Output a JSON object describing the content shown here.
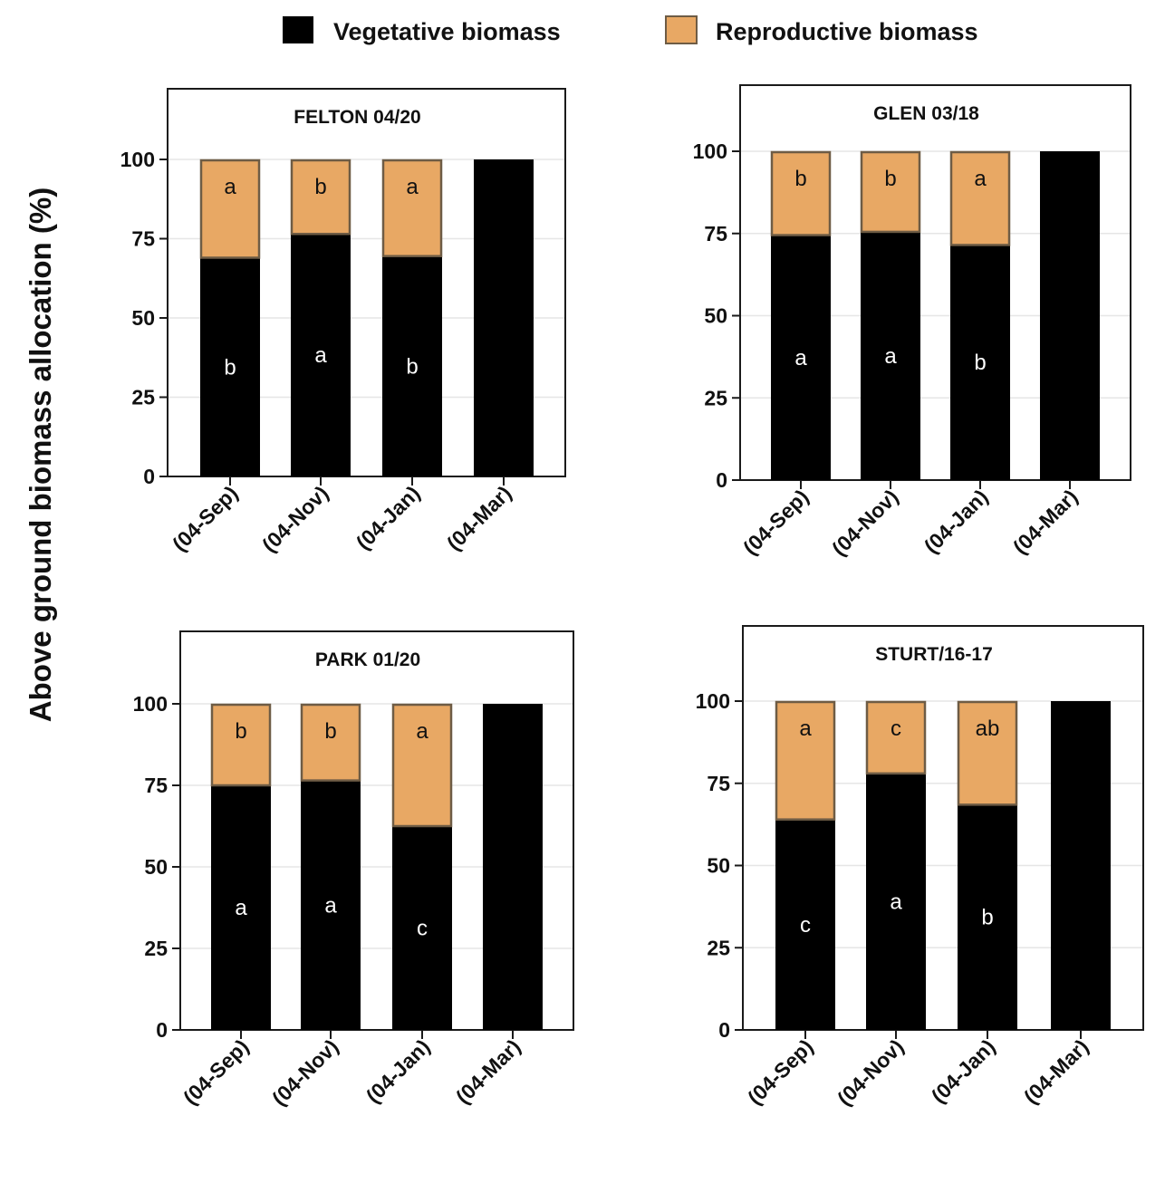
{
  "chart_data": {
    "type": "bar",
    "stacked": true,
    "ylabel": "Above ground biomass allocation (%)",
    "legend": {
      "position": "top-center",
      "entries": [
        {
          "name": "Vegetative biomass",
          "color": "#000000"
        },
        {
          "name": "Reproductive biomass",
          "color": "#E8A864"
        }
      ]
    },
    "ylim": [
      0,
      120
    ],
    "yticks": [
      0,
      25,
      50,
      75,
      100
    ],
    "categories": [
      "(04-Sep)",
      "(04-Nov)",
      "(04-Jan)",
      "(04-Mar)"
    ],
    "colors": {
      "vegetative": "#000000",
      "reproductive": "#E8A864",
      "reproductive_edge": "#6E5C45",
      "gridline": "#E6E6E6"
    },
    "panels": [
      {
        "title": "FELTON 04/20",
        "vegetative": [
          69,
          76.5,
          69.5,
          100
        ],
        "reproductive": [
          31,
          23.5,
          30.5,
          0
        ],
        "vegetative_letters": [
          "b",
          "a",
          "b",
          ""
        ],
        "reproductive_letters": [
          "a",
          "b",
          "a",
          ""
        ]
      },
      {
        "title": "GLEN 03/18",
        "vegetative": [
          74.5,
          75.5,
          71.5,
          100
        ],
        "reproductive": [
          25.5,
          24.5,
          28.5,
          0
        ],
        "vegetative_letters": [
          "a",
          "a",
          "b",
          ""
        ],
        "reproductive_letters": [
          "b",
          "b",
          "a",
          ""
        ]
      },
      {
        "title": "PARK 01/20",
        "vegetative": [
          75,
          76.5,
          62.5,
          100
        ],
        "reproductive": [
          25,
          23.5,
          37.5,
          0
        ],
        "vegetative_letters": [
          "a",
          "a",
          "c",
          ""
        ],
        "reproductive_letters": [
          "b",
          "b",
          "a",
          ""
        ]
      },
      {
        "title": "STURT/16-17",
        "vegetative": [
          64,
          78,
          68.5,
          100
        ],
        "reproductive": [
          36,
          22,
          31.5,
          0
        ],
        "vegetative_letters": [
          "c",
          "a",
          "b",
          ""
        ],
        "reproductive_letters": [
          "a",
          "c",
          "ab",
          ""
        ]
      }
    ]
  }
}
